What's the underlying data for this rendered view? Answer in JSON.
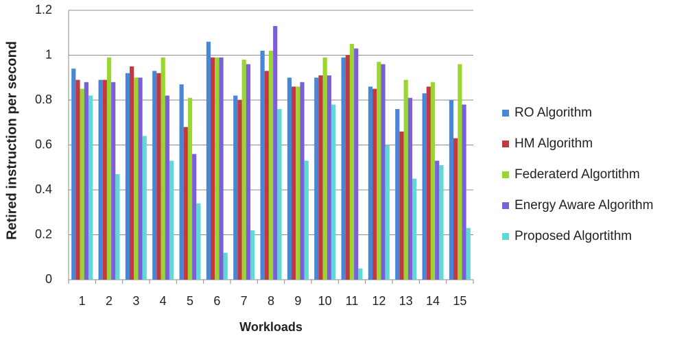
{
  "chart_data": {
    "type": "bar",
    "x_label": "Workloads",
    "y_label": "Retired instruction per second",
    "categories": [
      "1",
      "2",
      "3",
      "4",
      "5",
      "6",
      "7",
      "8",
      "9",
      "10",
      "11",
      "12",
      "13",
      "14",
      "15"
    ],
    "series": [
      {
        "name": "RO Algorithm",
        "color": "#4a86d8",
        "values": [
          0.94,
          0.89,
          0.92,
          0.93,
          0.87,
          1.06,
          0.82,
          1.02,
          0.9,
          0.9,
          0.99,
          0.86,
          0.76,
          0.83,
          0.8
        ]
      },
      {
        "name": "HM Algorithm",
        "color": "#c0393f",
        "values": [
          0.89,
          0.89,
          0.95,
          0.92,
          0.68,
          0.99,
          0.8,
          0.93,
          0.86,
          0.91,
          1.0,
          0.85,
          0.66,
          0.86,
          0.63
        ]
      },
      {
        "name": "Federaterd Algortithm",
        "color": "#9ad62f",
        "values": [
          0.85,
          0.99,
          0.9,
          0.99,
          0.81,
          0.99,
          0.98,
          1.02,
          0.86,
          0.99,
          1.05,
          0.97,
          0.89,
          0.88,
          0.96
        ]
      },
      {
        "name": "Energy Aware Algorithm",
        "color": "#7b5fd6",
        "values": [
          0.88,
          0.88,
          0.9,
          0.82,
          0.56,
          0.99,
          0.96,
          1.13,
          0.88,
          0.91,
          1.03,
          0.96,
          0.81,
          0.53,
          0.78
        ]
      },
      {
        "name": "Proposed Algortithm",
        "color": "#5fd8d6",
        "values": [
          0.82,
          0.47,
          0.64,
          0.53,
          0.34,
          0.12,
          0.22,
          0.76,
          0.53,
          0.78,
          0.05,
          0.6,
          0.45,
          0.51,
          0.23
        ]
      }
    ],
    "ylim": [
      0,
      1.2
    ],
    "yticks": [
      0,
      0.2,
      0.4,
      0.6,
      0.8,
      1,
      1.2
    ],
    "grid": true,
    "legend": "right"
  }
}
